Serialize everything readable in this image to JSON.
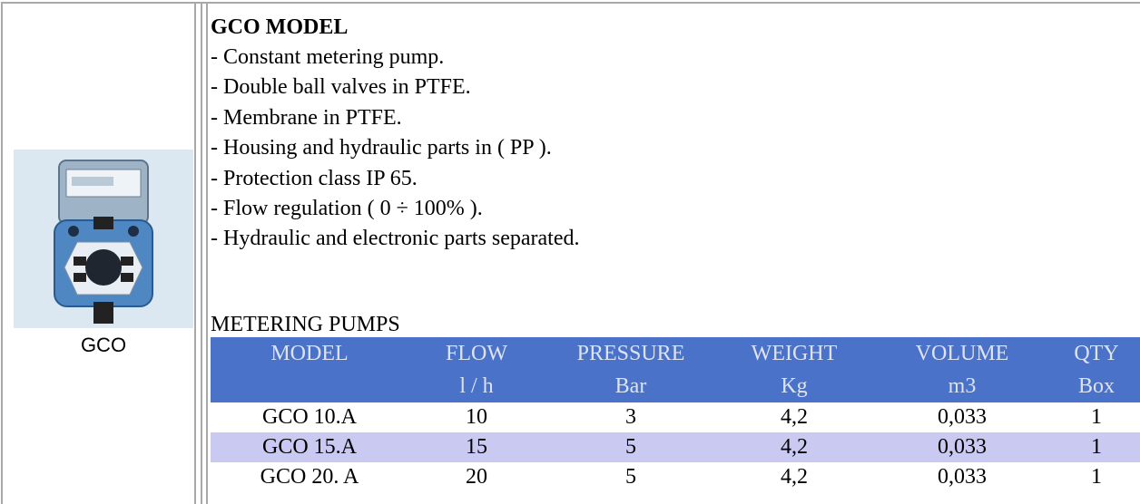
{
  "left": {
    "caption": "GCO"
  },
  "description": {
    "title": "GCO MODEL",
    "bullets": [
      "- Constant metering pump.",
      "- Double ball valves in PTFE.",
      "- Membrane in PTFE.",
      "- Housing and hydraulic parts in ( PP ).",
      "- Protection class IP 65.",
      "- Flow regulation ( 0 ÷ 100% ).",
      "- Hydraulic and electronic parts separated."
    ]
  },
  "section_title": "METERING PUMPS",
  "table": {
    "header": [
      [
        "MODEL",
        "FLOW",
        "PRESSURE",
        "WEIGHT",
        "VOLUME",
        "QTY"
      ],
      [
        "",
        "l / h",
        "Bar",
        "Kg",
        "m3",
        "Box"
      ]
    ],
    "rows": [
      [
        "GCO 10.A",
        "10",
        "3",
        "4,2",
        "0,033",
        "1"
      ],
      [
        "GCO 15.A",
        "15",
        "5",
        "4,2",
        "0,033",
        "1"
      ],
      [
        "GCO 20. A",
        "20",
        "5",
        "4,2",
        "0,033",
        "1"
      ]
    ]
  }
}
